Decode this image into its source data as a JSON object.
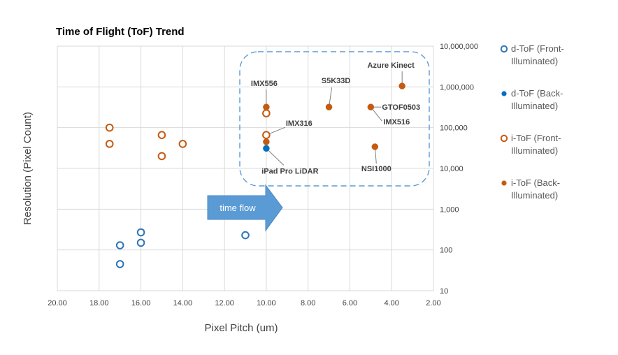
{
  "chart_data": {
    "type": "scatter",
    "title": "Time of Flight (ToF) Trend",
    "xlabel": "Pixel Pitch (um)",
    "ylabel": "Resolution (Pixel Count)",
    "x_reversed": true,
    "xlim": [
      2,
      20
    ],
    "y_scale": "log",
    "ylim": [
      10,
      10000000
    ],
    "y_axis_side": "right",
    "grid": true,
    "legend_position": "right",
    "x_ticks": [
      "20.00",
      "18.00",
      "16.00",
      "14.00",
      "12.00",
      "10.00",
      "8.00",
      "6.00",
      "4.00",
      "2.00"
    ],
    "y_ticks": [
      "10,000,000",
      "1,000,000",
      "100,000",
      "10,000",
      "1,000",
      "100",
      "10"
    ],
    "series": [
      {
        "name": "d-ToF (Front-Illuminated)",
        "name_lines": [
          "d-ToF (Front-",
          "Illuminated)"
        ],
        "marker": "open",
        "color": "#2E75B6",
        "points": [
          {
            "x": 17.0,
            "y": 130
          },
          {
            "x": 17.0,
            "y": 45
          },
          {
            "x": 16.0,
            "y": 270
          },
          {
            "x": 16.0,
            "y": 150
          },
          {
            "x": 11.0,
            "y": 230
          }
        ]
      },
      {
        "name": "d-ToF (Back-Illuminated)",
        "name_lines": [
          "d-ToF (Back-",
          "Illuminated)"
        ],
        "marker": "filled",
        "color": "#0070C0",
        "points": [
          {
            "x": 10.0,
            "y": 31000
          }
        ]
      },
      {
        "name": "i-ToF (Front-Illuminated)",
        "name_lines": [
          "i-ToF (Front-",
          "Illuminated)"
        ],
        "marker": "open",
        "color": "#C55A11",
        "points": [
          {
            "x": 17.5,
            "y": 100000
          },
          {
            "x": 17.5,
            "y": 40000
          },
          {
            "x": 15.0,
            "y": 66000
          },
          {
            "x": 15.0,
            "y": 20000
          },
          {
            "x": 14.0,
            "y": 40000
          },
          {
            "x": 10.0,
            "y": 225000
          },
          {
            "x": 10.0,
            "y": 66000
          }
        ]
      },
      {
        "name": "i-ToF (Back-Illuminated)",
        "name_lines": [
          "i-ToF (Back-",
          "Illuminated)"
        ],
        "marker": "filled",
        "color": "#C55A11",
        "points": [
          {
            "x": 10.0,
            "y": 320000
          },
          {
            "x": 10.0,
            "y": 45000
          },
          {
            "x": 7.0,
            "y": 320000
          },
          {
            "x": 5.0,
            "y": 320000
          },
          {
            "x": 4.8,
            "y": 34000
          },
          {
            "x": 3.5,
            "y": 1050000
          }
        ]
      }
    ],
    "annotations": [
      {
        "text": "Azure Kinect",
        "x": 3.5,
        "y": 1050000
      },
      {
        "text": "S5K33D",
        "x": 7.0,
        "y": 320000
      },
      {
        "text": "IMX556",
        "x": 10.0,
        "y": 320000
      },
      {
        "text": "GTOF0503",
        "x": 5.0,
        "y": 320000
      },
      {
        "text": "IMX516",
        "x": 5.0,
        "y": 320000
      },
      {
        "text": "IMX316",
        "x": 10.0,
        "y": 66000
      },
      {
        "text": "iPad Pro LiDAR",
        "x": 10.0,
        "y": 31000
      },
      {
        "text": "NSI1000",
        "x": 4.8,
        "y": 34000
      }
    ],
    "arrow_label": "time flow"
  }
}
